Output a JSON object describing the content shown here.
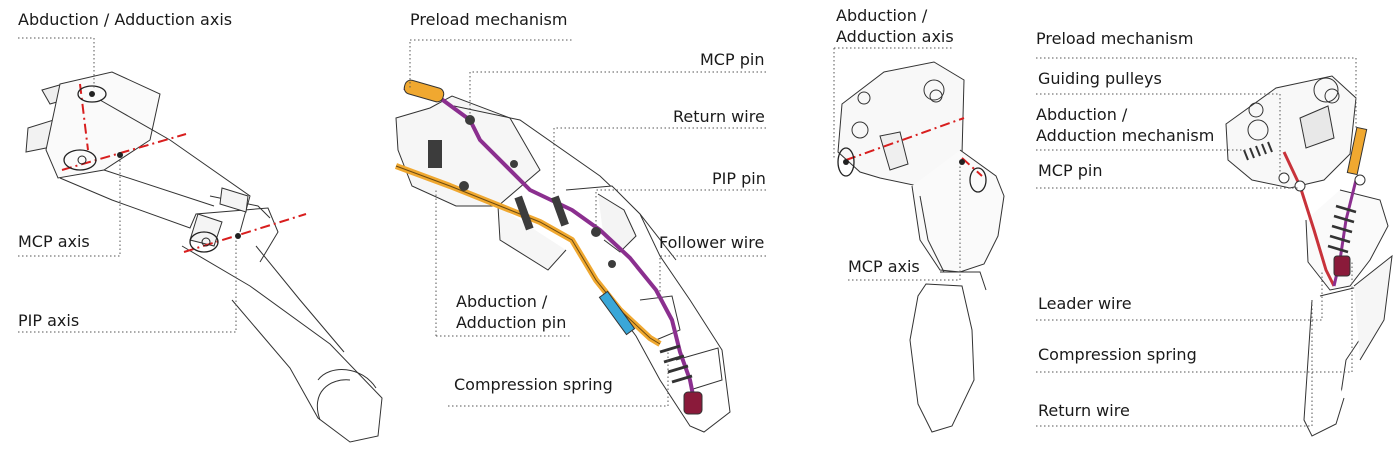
{
  "panels": [
    {
      "id": "finger-axes",
      "labels": {
        "abduction_axis": "Abduction / Adduction axis",
        "mcp_axis": "MCP axis",
        "pip_axis": "PIP axis"
      }
    },
    {
      "id": "finger-mechanism",
      "labels": {
        "preload_mechanism": "Preload mechanism",
        "mcp_pin": "MCP pin",
        "return_wire": "Return wire",
        "pip_pin": "PIP pin",
        "follower_wire": "Follower wire",
        "abduction_pin": "Abduction /\nAdduction pin",
        "compression_spring": "Compression spring"
      }
    },
    {
      "id": "thumb-axes",
      "labels": {
        "abduction_axis": "Abduction /\nAdduction axis",
        "mcp_axis": "MCP axis"
      }
    },
    {
      "id": "thumb-mechanism",
      "labels": {
        "preload_mechanism": "Preload mechanism",
        "guiding_pulleys": "Guiding pulleys",
        "abduction_mechanism": "Abduction /\nAdduction mechanism",
        "mcp_pin": "MCP pin",
        "leader_wire": "Leader wire",
        "compression_spring": "Compression spring",
        "return_wire": "Return wire"
      }
    }
  ],
  "colors": {
    "outline": "#333333",
    "axis": "#d81e1e",
    "leader_wire": "#8b2f8f",
    "follower_wire": "#f0a830",
    "spring": "#8a1a3a",
    "cover": "#3aa7d8",
    "leader_line": "#555555"
  }
}
